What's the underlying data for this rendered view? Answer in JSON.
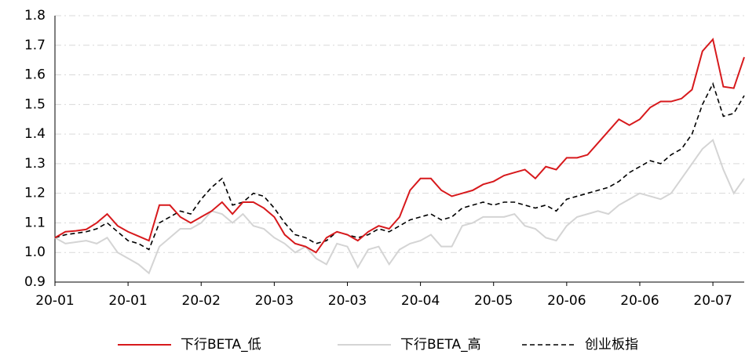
{
  "chart_data": {
    "type": "line",
    "categories": [
      "20-01",
      null,
      null,
      null,
      null,
      null,
      null,
      "20-01",
      null,
      null,
      null,
      null,
      null,
      null,
      "20-02",
      null,
      null,
      null,
      null,
      null,
      null,
      "20-03",
      null,
      null,
      null,
      null,
      null,
      null,
      "20-03",
      null,
      null,
      null,
      null,
      null,
      null,
      "20-04",
      null,
      null,
      null,
      null,
      null,
      null,
      "20-05",
      null,
      null,
      null,
      null,
      null,
      null,
      "20-06",
      null,
      null,
      null,
      null,
      null,
      null,
      "20-06",
      null,
      null,
      null,
      null,
      null,
      null,
      "20-07",
      null,
      null,
      null
    ],
    "series": [
      {
        "name": "下行BETA_低",
        "color": "#d7191c",
        "style": "solid",
        "values": [
          1.05,
          1.07,
          1.073,
          1.078,
          1.1,
          1.13,
          1.09,
          1.07,
          1.055,
          1.04,
          1.16,
          1.16,
          1.12,
          1.1,
          1.12,
          1.14,
          1.17,
          1.13,
          1.17,
          1.17,
          1.15,
          1.12,
          1.06,
          1.03,
          1.02,
          1.0,
          1.05,
          1.07,
          1.06,
          1.04,
          1.07,
          1.09,
          1.08,
          1.12,
          1.21,
          1.25,
          1.25,
          1.21,
          1.19,
          1.2,
          1.21,
          1.23,
          1.24,
          1.26,
          1.27,
          1.28,
          1.25,
          1.29,
          1.28,
          1.32,
          1.32,
          1.33,
          1.37,
          1.41,
          1.45,
          1.43,
          1.45,
          1.49,
          1.51,
          1.51,
          1.52,
          1.55,
          1.68,
          1.72,
          1.56,
          1.555,
          1.66
        ]
      },
      {
        "name": "下行BETA_高",
        "color": "#d4d4d4",
        "style": "solid",
        "values": [
          1.05,
          1.03,
          1.035,
          1.04,
          1.03,
          1.05,
          1.0,
          0.98,
          0.96,
          0.93,
          1.02,
          1.05,
          1.08,
          1.08,
          1.1,
          1.14,
          1.13,
          1.1,
          1.13,
          1.09,
          1.08,
          1.05,
          1.03,
          1.0,
          1.02,
          0.98,
          0.96,
          1.03,
          1.02,
          0.95,
          1.01,
          1.02,
          0.96,
          1.01,
          1.03,
          1.04,
          1.06,
          1.02,
          1.02,
          1.09,
          1.1,
          1.12,
          1.12,
          1.12,
          1.13,
          1.09,
          1.08,
          1.05,
          1.04,
          1.09,
          1.12,
          1.13,
          1.14,
          1.13,
          1.16,
          1.18,
          1.2,
          1.19,
          1.18,
          1.2,
          1.25,
          1.3,
          1.35,
          1.38,
          1.28,
          1.2,
          1.25
        ]
      },
      {
        "name": "创业板指",
        "color": "#000000",
        "style": "dashed",
        "values": [
          1.05,
          1.06,
          1.065,
          1.07,
          1.08,
          1.1,
          1.07,
          1.04,
          1.03,
          1.01,
          1.1,
          1.12,
          1.14,
          1.13,
          1.18,
          1.22,
          1.25,
          1.16,
          1.17,
          1.2,
          1.19,
          1.15,
          1.1,
          1.06,
          1.05,
          1.03,
          1.04,
          1.07,
          1.06,
          1.05,
          1.06,
          1.08,
          1.07,
          1.09,
          1.11,
          1.12,
          1.13,
          1.11,
          1.12,
          1.15,
          1.16,
          1.17,
          1.16,
          1.17,
          1.17,
          1.16,
          1.15,
          1.16,
          1.14,
          1.18,
          1.19,
          1.2,
          1.21,
          1.22,
          1.24,
          1.27,
          1.29,
          1.31,
          1.3,
          1.33,
          1.35,
          1.4,
          1.5,
          1.57,
          1.46,
          1.47,
          1.53
        ]
      }
    ],
    "ylim": [
      0.9,
      1.8
    ],
    "yticks": [
      0.9,
      {
        "value": 1,
        "label": "1.0"
      },
      1.1,
      1.2,
      1.3,
      1.4,
      1.5,
      1.6,
      1.7,
      1.8
    ],
    "grid": true,
    "legend": "bottom"
  }
}
